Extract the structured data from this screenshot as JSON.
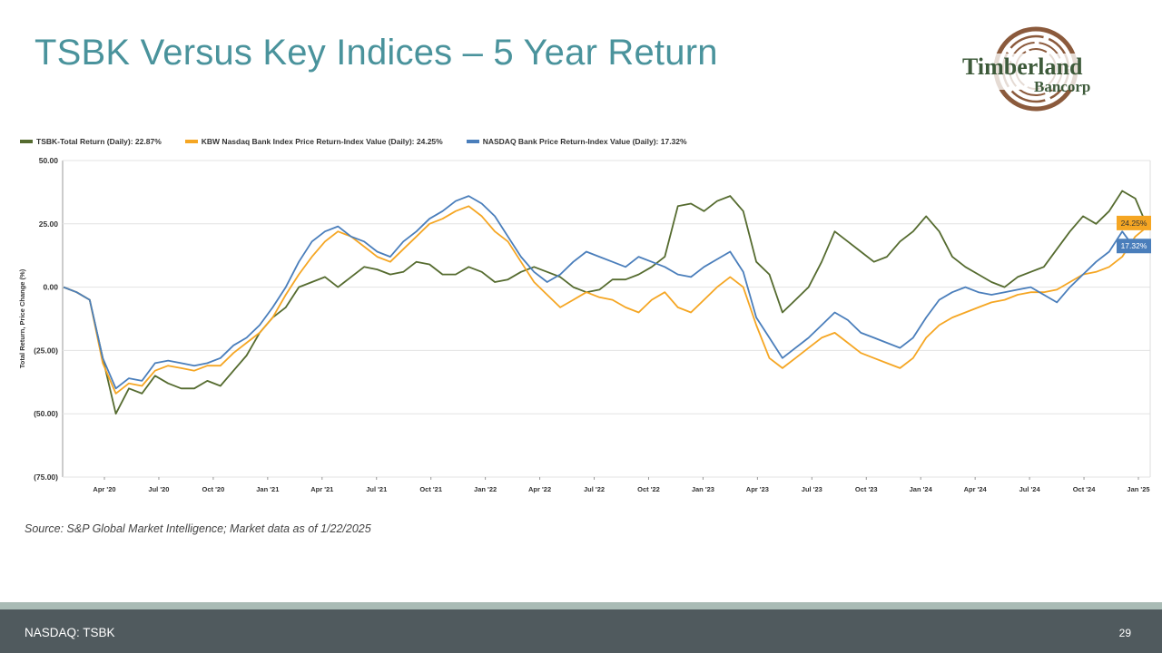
{
  "slide": {
    "title": "TSBK Versus Key Indices – 5 Year Return",
    "source_note": "Source: S&P Global Market Intelligence; Market data as of 1/22/2025",
    "footer_left": "NASDAQ: TSBK",
    "page_number": "29",
    "logo": {
      "line1": "Timberland",
      "line2": "Bancorp"
    },
    "colors": {
      "title": "#4a939c",
      "footer": "#505a5e",
      "footer_strip": "#a9bbb5"
    }
  },
  "chart_data": {
    "type": "line",
    "title": "",
    "xlabel": "",
    "ylabel": "Total Return, Price Change (%)",
    "ylim": [
      -75,
      50
    ],
    "yticks": [
      50,
      25,
      0,
      -25,
      -50,
      -75
    ],
    "ytick_labels": [
      "50.00",
      "25.00",
      "0.00",
      "(25.00)",
      "(50.00)",
      "(75.00)"
    ],
    "xlim": [
      "2020-01-22",
      "2025-01-22"
    ],
    "xticks": [
      "Apr '20",
      "Jul '20",
      "Oct '20",
      "Jan '21",
      "Apr '21",
      "Jul '21",
      "Oct '21",
      "Jan '22",
      "Apr '22",
      "Jul '22",
      "Oct '22",
      "Jan '23",
      "Apr '23",
      "Jul '23",
      "Oct '23",
      "Jan '24",
      "Apr '24",
      "Jul '24",
      "Oct '24",
      "Jan '25"
    ],
    "grid": true,
    "legend_position": "top-left",
    "series": [
      {
        "name": "TSBK-Total Return (Daily): 22.87%",
        "color": "#556b2f",
        "final_label": "",
        "values": [
          0,
          -2,
          -5,
          -28,
          -50,
          -40,
          -42,
          -35,
          -38,
          -40,
          -40,
          -37,
          -39,
          -33,
          -27,
          -18,
          -12,
          -8,
          0,
          2,
          4,
          0,
          4,
          8,
          7,
          5,
          6,
          10,
          9,
          5,
          5,
          8,
          6,
          2,
          3,
          6,
          8,
          6,
          4,
          0,
          -2,
          -1,
          3,
          3,
          5,
          8,
          12,
          32,
          33,
          30,
          34,
          36,
          30,
          10,
          5,
          -10,
          -5,
          0,
          10,
          22,
          18,
          14,
          10,
          12,
          18,
          22,
          28,
          22,
          12,
          8,
          5,
          2,
          0,
          4,
          6,
          8,
          15,
          22,
          28,
          25,
          30,
          38,
          35,
          22.87
        ]
      },
      {
        "name": "KBW Nasdaq Bank Index Price Return-Index Value (Daily): 24.25%",
        "color": "#f5a623",
        "final_label": "24.25%",
        "values": [
          0,
          -2,
          -5,
          -30,
          -42,
          -38,
          -39,
          -33,
          -31,
          -32,
          -33,
          -31,
          -31,
          -26,
          -22,
          -18,
          -12,
          -3,
          5,
          12,
          18,
          22,
          20,
          16,
          12,
          10,
          15,
          20,
          25,
          27,
          30,
          32,
          28,
          22,
          18,
          10,
          2,
          -3,
          -8,
          -5,
          -2,
          -4,
          -5,
          -8,
          -10,
          -5,
          -2,
          -8,
          -10,
          -5,
          0,
          4,
          0,
          -15,
          -28,
          -32,
          -28,
          -24,
          -20,
          -18,
          -22,
          -26,
          -28,
          -30,
          -32,
          -28,
          -20,
          -15,
          -12,
          -10,
          -8,
          -6,
          -5,
          -3,
          -2,
          -2,
          -1,
          2,
          5,
          6,
          8,
          12,
          20,
          24.25
        ]
      },
      {
        "name": "NASDAQ Bank Price Return-Index Value (Daily): 17.32%",
        "color": "#4a7ebb",
        "final_label": "17.32%",
        "values": [
          0,
          -2,
          -5,
          -28,
          -40,
          -36,
          -37,
          -30,
          -29,
          -30,
          -31,
          -30,
          -28,
          -23,
          -20,
          -15,
          -8,
          0,
          10,
          18,
          22,
          24,
          20,
          18,
          14,
          12,
          18,
          22,
          27,
          30,
          34,
          36,
          33,
          28,
          20,
          12,
          6,
          2,
          5,
          10,
          14,
          12,
          10,
          8,
          12,
          10,
          8,
          5,
          4,
          8,
          11,
          14,
          6,
          -12,
          -20,
          -28,
          -24,
          -20,
          -15,
          -10,
          -13,
          -18,
          -20,
          -22,
          -24,
          -20,
          -12,
          -5,
          -2,
          0,
          -2,
          -3,
          -2,
          -1,
          0,
          -3,
          -6,
          0,
          5,
          10,
          14,
          22,
          15,
          17.32
        ]
      }
    ]
  }
}
